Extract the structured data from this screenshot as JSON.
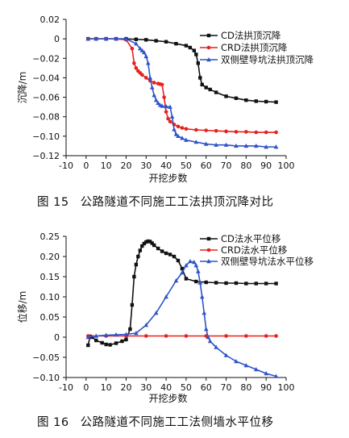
{
  "chart_data": [
    {
      "type": "line",
      "xlabel": "开挖步数",
      "ylabel": "沉降/m",
      "xlim": [
        -10,
        100
      ],
      "ylim": [
        -0.12,
        0.02
      ],
      "xticks": [
        -10,
        0,
        10,
        20,
        30,
        40,
        50,
        60,
        70,
        80,
        90,
        100
      ],
      "yticks": [
        0.02,
        0,
        -0.02,
        -0.04,
        -0.06,
        -0.08,
        -0.1,
        -0.12
      ],
      "ytick_labels": [
        "0.02",
        "0",
        "−0.02",
        "−0.04",
        "−0.06",
        "−0.08",
        "−0.10",
        "−0.12"
      ],
      "legend_position": "top-right",
      "series": [
        {
          "name": "CD法拱顶沉降",
          "color": "#111111",
          "marker": "square",
          "x": [
            1,
            5,
            10,
            15,
            20,
            25,
            30,
            35,
            40,
            45,
            50,
            52,
            54,
            55,
            56,
            57,
            58,
            60,
            62,
            65,
            70,
            75,
            80,
            85,
            90,
            95
          ],
          "y": [
            0,
            0,
            0,
            0,
            0,
            -0.0005,
            -0.001,
            -0.002,
            -0.003,
            -0.005,
            -0.007,
            -0.009,
            -0.012,
            -0.016,
            -0.025,
            -0.04,
            -0.047,
            -0.05,
            -0.052,
            -0.055,
            -0.059,
            -0.061,
            -0.063,
            -0.064,
            -0.0645,
            -0.065
          ]
        },
        {
          "name": "CRD法拱顶沉降",
          "color": "#e8211c",
          "marker": "circle",
          "x": [
            1,
            5,
            10,
            15,
            20,
            23,
            24,
            25,
            26,
            27,
            28,
            30,
            32,
            34,
            36,
            37,
            38,
            39,
            40,
            41,
            42,
            44,
            46,
            48,
            50,
            55,
            60,
            65,
            70,
            75,
            80,
            85,
            90,
            95
          ],
          "y": [
            0,
            0,
            0,
            0,
            -0.001,
            -0.01,
            -0.025,
            -0.03,
            -0.033,
            -0.035,
            -0.037,
            -0.04,
            -0.043,
            -0.045,
            -0.046,
            -0.0465,
            -0.047,
            -0.06,
            -0.075,
            -0.082,
            -0.085,
            -0.088,
            -0.09,
            -0.0915,
            -0.0925,
            -0.0935,
            -0.094,
            -0.0945,
            -0.095,
            -0.0955,
            -0.0955,
            -0.096,
            -0.096,
            -0.096
          ]
        },
        {
          "name": "双侧壁导坑法拱顶沉降",
          "color": "#2f53c8",
          "marker": "triangle",
          "x": [
            1,
            5,
            10,
            15,
            20,
            25,
            27,
            28,
            29,
            30,
            31,
            32,
            33,
            34,
            35,
            36,
            37,
            38,
            40,
            42,
            43,
            44,
            45,
            46,
            48,
            50,
            55,
            60,
            65,
            70,
            75,
            80,
            85,
            90,
            95
          ],
          "y": [
            0,
            0,
            0,
            0,
            0,
            -0.005,
            -0.01,
            -0.012,
            -0.014,
            -0.018,
            -0.025,
            -0.04,
            -0.05,
            -0.058,
            -0.063,
            -0.066,
            -0.068,
            -0.069,
            -0.0695,
            -0.07,
            -0.08,
            -0.093,
            -0.098,
            -0.1,
            -0.102,
            -0.104,
            -0.106,
            -0.108,
            -0.109,
            -0.109,
            -0.11,
            -0.11,
            -0.11,
            -0.111,
            -0.111
          ]
        }
      ]
    },
    {
      "type": "line",
      "xlabel": "开挖步数",
      "ylabel": "位移/m",
      "xlim": [
        -10,
        100
      ],
      "ylim": [
        -0.1,
        0.25
      ],
      "xticks": [
        -10,
        0,
        10,
        20,
        30,
        40,
        50,
        60,
        70,
        80,
        90,
        100
      ],
      "yticks": [
        0.25,
        0.2,
        0.15,
        0.1,
        0.05,
        0,
        -0.05,
        -0.1
      ],
      "ytick_labels": [
        "0.25",
        "0.20",
        "0.15",
        "0.10",
        "0.05",
        "0",
        "−0.05",
        "−0.10"
      ],
      "legend_position": "top-right",
      "series": [
        {
          "name": "CD法水平位移",
          "color": "#111111",
          "marker": "square",
          "x": [
            1,
            2,
            3,
            5,
            8,
            10,
            12,
            15,
            18,
            20,
            22,
            23,
            24,
            25,
            26,
            27,
            28,
            29,
            30,
            31,
            32,
            33,
            34,
            36,
            38,
            40,
            42,
            44,
            46,
            48,
            50,
            55,
            60,
            65,
            70,
            75,
            80,
            85,
            90,
            95
          ],
          "y": [
            -0.02,
            0.002,
            0.0,
            -0.008,
            -0.014,
            -0.018,
            -0.019,
            -0.015,
            -0.01,
            -0.006,
            0.02,
            0.08,
            0.15,
            0.18,
            0.2,
            0.215,
            0.226,
            0.232,
            0.236,
            0.238,
            0.237,
            0.233,
            0.228,
            0.22,
            0.213,
            0.208,
            0.205,
            0.2,
            0.19,
            0.17,
            0.145,
            0.138,
            0.136,
            0.135,
            0.134,
            0.134,
            0.133,
            0.133,
            0.133,
            0.133
          ]
        },
        {
          "name": "CRD法水平位移",
          "color": "#e8211c",
          "marker": "circle",
          "x": [
            1,
            10,
            20,
            30,
            40,
            50,
            60,
            70,
            80,
            90,
            95
          ],
          "y": [
            0.003,
            0.003,
            0.003,
            0.003,
            0.003,
            0.003,
            0.003,
            0.003,
            0.003,
            0.003,
            0.003
          ]
        },
        {
          "name": "双侧壁导坑法水平位移",
          "color": "#2f53c8",
          "marker": "triangle",
          "x": [
            1,
            5,
            10,
            15,
            20,
            25,
            30,
            35,
            40,
            45,
            48,
            50,
            52,
            54,
            55,
            56,
            57,
            58,
            59,
            60,
            61,
            62,
            65,
            70,
            75,
            80,
            85,
            90,
            95
          ],
          "y": [
            0.0,
            0.003,
            0.005,
            0.006,
            0.007,
            0.01,
            0.03,
            0.06,
            0.1,
            0.14,
            0.16,
            0.178,
            0.188,
            0.186,
            0.178,
            0.163,
            0.135,
            0.1,
            0.06,
            0.02,
            0.0,
            -0.01,
            -0.025,
            -0.045,
            -0.06,
            -0.07,
            -0.08,
            -0.09,
            -0.097
          ]
        }
      ]
    }
  ],
  "captions": {
    "fig15": {
      "number": "图 15",
      "text": "公路隧道不同施工工法拱顶沉降对比"
    },
    "fig16": {
      "number": "图 16",
      "text": "公路隧道不同施工工法侧墙水平位移"
    }
  }
}
